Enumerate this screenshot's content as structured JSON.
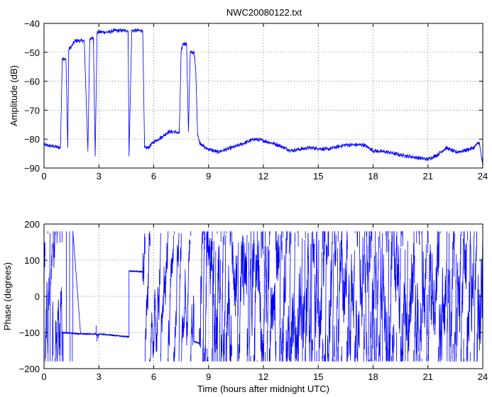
{
  "chart_data": [
    {
      "type": "line",
      "title": "NWC20080122.txt",
      "xlabel": "",
      "ylabel": "Amplitude (dB)",
      "xlim": [
        0,
        24
      ],
      "ylim": [
        -90,
        -40
      ],
      "grid": true,
      "x_ticks": [
        0,
        3,
        6,
        9,
        12,
        15,
        18,
        21,
        24
      ],
      "y_ticks": [
        -90,
        -80,
        -70,
        -60,
        -50,
        -40
      ],
      "x_tick_labels": [
        "0",
        "3",
        "6",
        "9",
        "12",
        "15",
        "18",
        "21",
        "24"
      ],
      "y_tick_labels": [
        "−90",
        "−80",
        "−70",
        "−60",
        "−50",
        "−40"
      ],
      "series": [
        {
          "color": "#0000ff",
          "noise": 0.7,
          "x": [
            0,
            0.5,
            0.9,
            1.0,
            1.05,
            1.2,
            1.3,
            1.35,
            1.5,
            1.6,
            1.7,
            1.8,
            2.2,
            2.4,
            2.5,
            2.6,
            2.7,
            2.8,
            2.9,
            2.95,
            3.0,
            3.2,
            3.4,
            3.6,
            3.8,
            4.0,
            4.5,
            4.6,
            4.65,
            4.8,
            5.2,
            5.4,
            5.5,
            5.7,
            6.0,
            6.4,
            6.8,
            7.2,
            7.4,
            7.5,
            7.6,
            7.8,
            7.9,
            8.0,
            8.2,
            8.3,
            8.4,
            8.5,
            8.8,
            9.5,
            10.5,
            11.5,
            12.0,
            12.8,
            13.5,
            14.5,
            15.5,
            16.5,
            17.5,
            18.0,
            18.8,
            19.5,
            20.5,
            21.0,
            21.5,
            22.0,
            22.5,
            23.0,
            23.5,
            23.8,
            24.0
          ],
          "values": [
            -82,
            -82.5,
            -83,
            -52,
            -52,
            -52.5,
            -83,
            -49,
            -48,
            -47,
            -46,
            -46,
            -46,
            -84,
            -46,
            -45,
            -45,
            -86,
            -43.5,
            -43,
            -43,
            -43,
            -43,
            -43,
            -42.5,
            -42.5,
            -42.5,
            -42.5,
            -86,
            -42.5,
            -42.5,
            -42.5,
            -83,
            -83,
            -81,
            -79.5,
            -77.5,
            -77.5,
            -78,
            -50,
            -47,
            -47,
            -77.5,
            -50,
            -50,
            -56,
            -78,
            -81,
            -83,
            -84.5,
            -82.5,
            -80,
            -80.5,
            -82,
            -84,
            -83,
            -83.5,
            -82,
            -82,
            -84,
            -84.5,
            -85.5,
            -86.5,
            -87,
            -85.5,
            -83,
            -84.5,
            -84,
            -83,
            -81,
            -89
          ]
        }
      ]
    },
    {
      "type": "line",
      "title": "",
      "xlabel": "Time (hours after midnight UTC)",
      "ylabel": "Phase (degrees)",
      "xlim": [
        0,
        24
      ],
      "ylim": [
        -200,
        200
      ],
      "grid": true,
      "x_ticks": [
        0,
        3,
        6,
        9,
        12,
        15,
        18,
        21,
        24
      ],
      "y_ticks": [
        -200,
        -100,
        0,
        100,
        200
      ],
      "x_tick_labels": [
        "0",
        "3",
        "6",
        "9",
        "12",
        "15",
        "18",
        "21",
        "24"
      ],
      "y_tick_labels": [
        "−200",
        "−100",
        "0",
        "100",
        "200"
      ],
      "series": [
        {
          "color": "#0000ff",
          "wrap": [
            -180,
            180
          ],
          "segments": [
            {
              "x0": 0.0,
              "x1": 1.0,
              "style": "wild",
              "speed": 150
            },
            {
              "x0": 1.0,
              "x1": 2.0,
              "style": "drift",
              "from": -100,
              "to": -104,
              "spikes": [
                [
                  1.05,
                  -180
                ],
                [
                  1.22,
                  180
                ],
                [
                  1.4,
                  180
                ],
                [
                  1.43,
                  -180
                ],
                [
                  1.55,
                  -180
                ],
                [
                  1.58,
                  180
                ]
              ]
            },
            {
              "x0": 2.0,
              "x1": 2.8,
              "style": "drift",
              "from": -104,
              "to": -104
            },
            {
              "x0": 2.8,
              "x1": 3.0,
              "style": "drift",
              "from": -104,
              "to": -110,
              "spikes": [
                [
                  2.85,
                  -80
                ],
                [
                  2.9,
                  -125
                ],
                [
                  2.95,
                  -115
                ]
              ]
            },
            {
              "x0": 3.0,
              "x1": 4.65,
              "style": "drift",
              "from": -104,
              "to": -112
            },
            {
              "x0": 4.65,
              "x1": 5.4,
              "style": "drift",
              "from": 70,
              "to": 68
            },
            {
              "x0": 5.4,
              "x1": 8.2,
              "style": "wild",
              "speed": 90
            },
            {
              "x0": 8.2,
              "x1": 8.5,
              "style": "drift",
              "from": -125,
              "to": -130
            },
            {
              "x0": 8.5,
              "x1": 24.0,
              "style": "wild",
              "speed": 170
            }
          ]
        }
      ]
    }
  ]
}
